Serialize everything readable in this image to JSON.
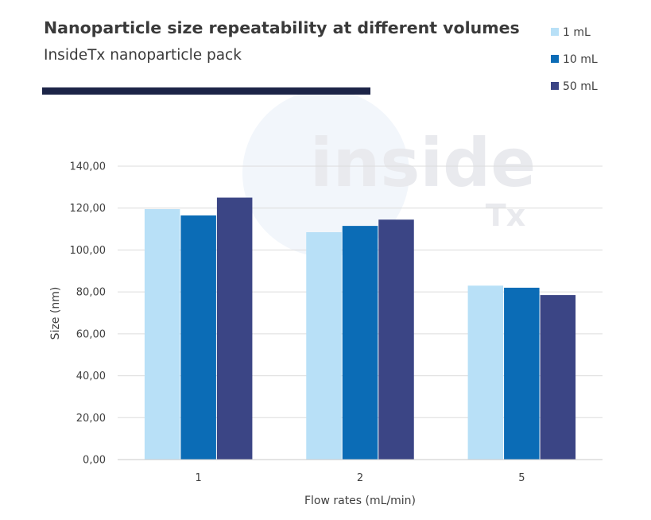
{
  "header": {
    "title": "Nanoparticle size repeatability at different volumes",
    "subtitle": "InsideTx nanoparticle pack",
    "accent_color": "#1c2447"
  },
  "watermark": {
    "word": "inside",
    "sub": "Tx"
  },
  "chart_data": {
    "type": "bar",
    "title": "Nanoparticle size repeatability at different volumes",
    "subtitle": "InsideTx nanoparticle pack",
    "xlabel": "Flow rates (mL/min)",
    "ylabel": "Size (nm)",
    "categories": [
      "1",
      "2",
      "5"
    ],
    "series": [
      {
        "name": "1 mL",
        "color": "#b8e0f7",
        "values": [
          119.5,
          108.5,
          83.0
        ]
      },
      {
        "name": "10 mL",
        "color": "#0b6cb6",
        "values": [
          116.5,
          111.5,
          82.0
        ]
      },
      {
        "name": "50 mL",
        "color": "#3b4585",
        "values": [
          125.0,
          114.5,
          78.5
        ]
      }
    ],
    "ylim": [
      0,
      140
    ],
    "yticks": [
      "0,00",
      "20,00",
      "40,00",
      "60,00",
      "80,00",
      "100,00",
      "120,00",
      "140,00"
    ],
    "grid": true,
    "legend_position": "top-right"
  }
}
